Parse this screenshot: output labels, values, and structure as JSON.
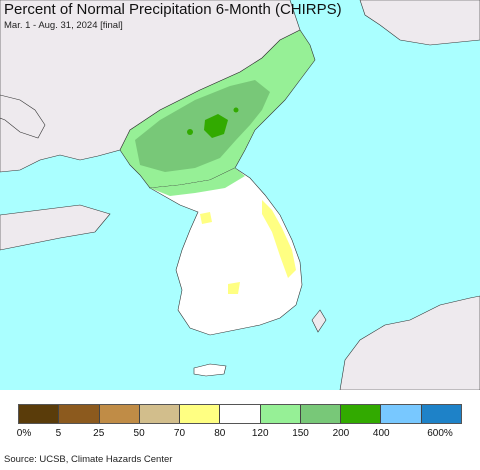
{
  "title": "Percent of Normal Precipitation 6-Month (CHIRPS)",
  "subtitle": "Mar. 1 - Aug. 31, 2024 [final]",
  "source": "Source: UCSB, Climate Hazards Center",
  "colors": {
    "sea": "#aaffff",
    "land_outside": "#eeeaee",
    "normal": "#ffffff",
    "pct_120_150": "#96f096",
    "pct_150_200": "#78c878",
    "pct_200_400": "#32aa00",
    "pct_70_80": "#ffff82"
  },
  "legend": {
    "colors": [
      "#5a3c0a",
      "#8c5a1e",
      "#c08c46",
      "#d2be8c",
      "#ffff82",
      "#ffffff",
      "#96f096",
      "#78c878",
      "#32aa00",
      "#78c8ff",
      "#1e82c8"
    ],
    "labels": [
      "0%",
      "5",
      "25",
      "50",
      "70",
      "80",
      "120",
      "150",
      "200",
      "400",
      "600%"
    ]
  }
}
